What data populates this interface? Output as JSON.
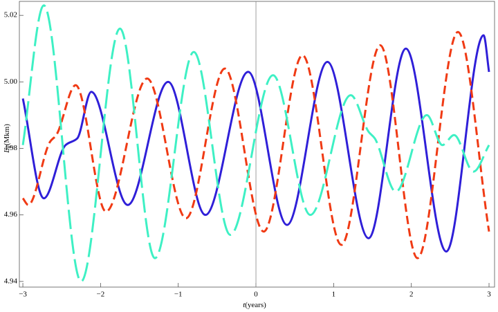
{
  "chart_data": {
    "type": "line",
    "xlabel": {
      "var": "t",
      "unit": "(years)"
    },
    "ylabel": {
      "main": "L",
      "sub": "ij",
      "unit": "(Mkm)"
    },
    "xlim": [
      -3.045,
      3.071
    ],
    "ylim": [
      4.9383,
      5.0242
    ],
    "xticks": [
      {
        "value": -3,
        "label": "−3"
      },
      {
        "value": -2,
        "label": "−2"
      },
      {
        "value": -1,
        "label": "−1"
      },
      0,
      1,
      2,
      3
    ],
    "yticks": [
      4.94,
      4.96,
      4.98,
      {
        "value": 5.0,
        "label": "5.00"
      },
      5.02
    ],
    "series": [
      {
        "color": "#2f1fd8",
        "dash": "none",
        "x": [
          -3,
          -2.73,
          -2.45,
          -2.3,
          -2.12,
          -1.65,
          -1.13,
          -0.65,
          -0.1,
          0.4,
          0.92,
          1.45,
          1.93,
          2.45,
          2.93,
          3
        ],
        "values": [
          4.995,
          4.965,
          4.981,
          4.983,
          4.997,
          4.963,
          5.0,
          4.96,
          5.003,
          4.957,
          5.006,
          4.953,
          5.01,
          4.949,
          5.014,
          5.003
        ]
      },
      {
        "color": "#f03a14",
        "dash": "12,6",
        "x": [
          -3,
          -2.93,
          -2.65,
          -2.57,
          -2.32,
          -1.93,
          -1.4,
          -0.9,
          -0.4,
          0.1,
          0.6,
          1.1,
          1.6,
          2.08,
          2.6,
          3
        ],
        "values": [
          4.965,
          4.963,
          4.982,
          4.984,
          4.999,
          4.961,
          5.001,
          4.959,
          5.004,
          4.955,
          5.008,
          4.951,
          5.011,
          4.947,
          5.015,
          4.955
        ]
      },
      {
        "color": "#3ef0c4",
        "dash": "28,8",
        "x": [
          -3,
          -2.73,
          -2.25,
          -1.75,
          -1.3,
          -0.8,
          -0.33,
          0.22,
          0.7,
          1.22,
          1.45,
          1.53,
          1.8,
          2.2,
          2.4,
          2.55,
          2.8,
          3
        ],
        "values": [
          4.981,
          5.023,
          4.94,
          5.016,
          4.947,
          5.009,
          4.954,
          5.002,
          4.96,
          4.996,
          4.985,
          4.983,
          4.967,
          4.99,
          4.981,
          4.984,
          4.973,
          4.981
        ]
      }
    ]
  }
}
